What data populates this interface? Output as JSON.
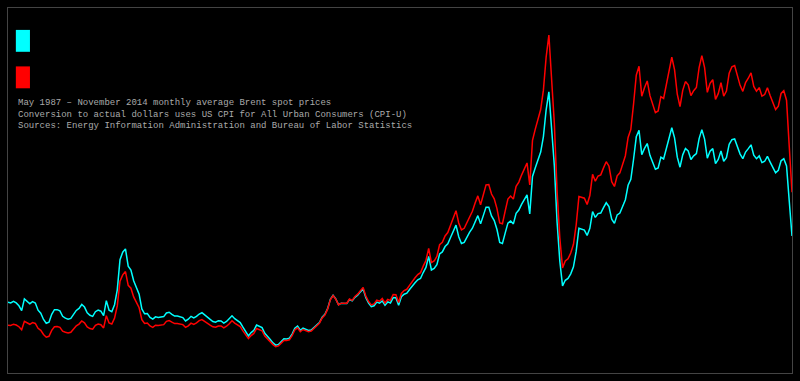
{
  "chart_data": {
    "type": "line",
    "annotations": [
      "May 1987 – November 2014 monthly average Brent spot prices",
      "Conversion to actual dollars uses US CPI for All Urban Consumers (CPI-U)",
      "Sources: Energy Information Administration and Bureau of Labor Statistics"
    ],
    "xlim": [
      0,
      287
    ],
    "ylim": [
      0,
      141.7176
    ],
    "tick_labels": false,
    "grid": false,
    "series": [
      {
        "color": "#ff0000",
        "values": [
          18.58,
          18.46,
          18.95,
          18.63,
          17.97,
          16.81,
          20.05,
          19.4,
          18.92,
          19.57,
          19.25,
          17.36,
          16.58,
          14.94,
          13.9,
          14.25,
          16.54,
          17.93,
          18.02,
          17.72,
          16.27,
          15.82,
          15.55,
          15.82,
          17.17,
          18.32,
          19.0,
          20.2,
          19.5,
          17.9,
          17.25,
          17.0,
          18.5,
          19.0,
          18.75,
          17.5,
          22.26,
          19.41,
          19.03,
          21.28,
          26.06,
          35.69,
          38.11,
          39.39,
          34.03,
          32.91,
          29.55,
          27.1,
          25.33,
          20.73,
          19.27,
          19.43,
          18.26,
          17.71,
          18.56,
          18.44,
          18.57,
          18.78,
          20.07,
          20.36,
          19.74,
          19.2,
          19.21,
          18.88,
          18.78,
          17.72,
          18.31,
          19.35,
          18.9,
          19.44,
          20.33,
          20.76,
          19.93,
          19.39,
          18.6,
          17.94,
          17.75,
          18.26,
          18.28,
          17.55,
          18.18,
          19.15,
          20.3,
          19.36,
          18.72,
          18.0,
          16.37,
          14.58,
          13.35,
          14.54,
          15.38,
          17.28,
          16.79,
          16.41,
          14.35,
          13.15,
          12.21,
          11.02,
          10.18,
          10.52,
          11.59,
          12.63,
          12.59,
          12.89,
          14.47,
          16.71,
          17.55,
          16.02,
          16.88,
          16.5,
          16.06,
          16.32,
          17.28,
          18.23,
          19.34,
          21.4,
          22.54,
          24.78,
          28.4,
          30.05,
          28.66,
          26.47,
          27.1,
          27.08,
          27.09,
          28.73,
          28.2,
          29.68,
          30.61,
          31.93,
          33.21,
          29.84,
          27.76,
          26.45,
          26.8,
          28.26,
          27.89,
          28.91,
          27.15,
          28.55,
          28.19,
          30.47,
          30.43,
          27.4,
          30.89,
          32.0,
          32.5,
          34.0,
          35.68,
          36.95,
          38.22,
          38.93,
          41.48,
          43.67,
          48.42,
          42.86,
          43.48,
          45.26,
          49.79,
          50.76,
          53.21,
          54.54,
          57.35,
          60.63,
          63.02,
          58.25,
          55.57,
          56.19,
          58.63,
          60.93,
          62.78,
          66.02,
          68.77,
          65.32,
          69.08,
          73.05,
          73.16,
          69.47,
          67.63,
          63.82,
          58.27,
          57.96,
          62.82,
          67.53,
          68.68,
          67.52,
          72.5,
          74.13,
          76.85,
          79.38,
          81.55,
          73.01,
          90.36,
          94.59,
          97.97,
          102.3,
          109.83,
          122.68,
          131.22,
          114.8,
          96.94,
          70.61,
          52.51,
          40.81,
          43.48,
          44.33,
          46.56,
          49.98,
          57.55,
          68.55,
          68.17,
          67.86,
          65.4,
          68.92,
          77.14,
          74.48,
          76.49,
          76.93,
          79.65,
          82.04,
          80.3,
          74.29,
          72.41,
          76.58,
          77.7,
          81.04,
          84.36,
          91.44,
          94.56,
          104.46,
          115.69,
          119.12,
          107.46,
          110.79,
          113.4,
          107.67,
          104.61,
          101.09,
          101.73,
          107.28,
          106.59,
          111.97,
          117.97,
          122.65,
          117.78,
          108.23,
          103.47,
          109.73,
          113.14,
          111.9,
          107.7,
          109.63,
          110.85,
          118.61,
          123.23,
          118.54,
          108.97,
          112.5,
          113.87,
          106.27,
          108.46,
          112.75,
          107.53,
          109.45,
          116.44,
          118.9,
          119.36,
          115.19,
          111.68,
          109.36,
          112.73,
          114.44,
          116.53,
          111.26,
          109.41,
          110.82,
          107.48,
          108.11,
          110.72,
          107.71,
          105.18,
          102.3,
          103.58,
          108.53,
          109.62,
          105.91,
          87.82,
          70.15
        ]
      },
      {
        "color": "#00ffff",
        "values": [
          27.5,
          27.2,
          27.8,
          27.2,
          26.1,
          24.2,
          28.8,
          27.7,
          26.9,
          27.7,
          27.2,
          24.4,
          23.2,
          20.8,
          19.3,
          19.7,
          22.8,
          24.6,
          24.6,
          24.1,
          22.0,
          21.3,
          20.9,
          21.2,
          22.9,
          24.3,
          25.1,
          26.6,
          25.6,
          23.4,
          22.4,
          22.0,
          23.8,
          24.4,
          24.0,
          22.3,
          28.1,
          24.4,
          23.8,
          26.5,
          32.3,
          44.0,
          46.9,
          48.2,
          41.5,
          40.0,
          35.8,
          32.8,
          30.6,
          24.9,
          23.0,
          23.1,
          21.6,
          20.9,
          21.8,
          21.6,
          21.7,
          21.9,
          23.3,
          23.6,
          22.8,
          22.1,
          22.1,
          21.7,
          21.5,
          20.2,
          20.9,
          22.0,
          21.4,
          22.0,
          22.9,
          23.4,
          22.4,
          21.7,
          20.8,
          20.0,
          19.7,
          20.3,
          20.2,
          19.4,
          20.0,
          21.0,
          22.2,
          21.1,
          20.4,
          19.6,
          17.8,
          15.8,
          14.4,
          15.7,
          16.6,
          18.6,
          18.0,
          17.6,
          15.4,
          14.0,
          13.0,
          11.7,
          10.8,
          11.1,
          12.2,
          13.3,
          13.2,
          13.5,
          15.1,
          17.4,
          18.2,
          16.6,
          17.4,
          17.0,
          16.5,
          16.7,
          17.6,
          18.5,
          19.6,
          21.7,
          22.8,
          25.0,
          28.6,
          30.2,
          28.8,
          26.5,
          27.1,
          27.0,
          27.0,
          28.5,
          28.0,
          29.4,
          30.2,
          31.5,
          32.6,
          29.2,
          27.1,
          25.8,
          26.1,
          27.5,
          27.1,
          28.0,
          26.3,
          27.6,
          27.2,
          29.3,
          29.2,
          26.3,
          29.6,
          30.6,
          31.0,
          32.4,
          33.9,
          35.0,
          36.2,
          36.7,
          39.0,
          41.0,
          45.3,
          40.0,
          40.6,
          42.1,
          46.2,
          47.0,
          49.1,
          50.2,
          52.6,
          55.4,
          57.4,
          52.9,
          50.3,
          50.7,
          52.8,
          54.7,
          56.2,
          58.9,
          61.1,
          57.9,
          61.1,
          64.4,
          64.4,
          61.0,
          59.2,
          55.7,
          50.7,
          50.3,
          54.3,
          58.2,
          59.0,
          57.9,
          62.0,
          63.3,
          65.5,
          67.5,
          69.2,
          61.8,
          76.3,
          79.6,
          82.3,
          85.8,
          91.8,
          102.2,
          109.2,
          95.4,
          80.5,
          58.6,
          43.5,
          33.8,
          36.0,
          36.7,
          38.5,
          41.2,
          47.3,
          56.2,
          55.8,
          55.5,
          53.4,
          56.2,
          62.7,
          60.4,
          61.9,
          62.1,
          64.2,
          66.1,
          64.6,
          59.7,
          58.1,
          61.4,
          62.1,
          64.7,
          67.3,
          72.9,
          75.2,
          83.0,
          91.7,
          94.2,
          84.8,
          87.2,
          89.1,
          84.5,
          82.0,
          79.1,
          79.6,
          83.8,
          83.1,
          87.2,
          91.7,
          95.2,
          91.3,
          83.8,
          79.9,
          84.7,
          87.2,
          86.2,
          82.9,
          84.3,
          85.2,
          91.0,
          94.5,
          90.8,
          83.4,
          86.1,
          87.1,
          81.3,
          82.9,
          86.2,
          82.2,
          83.6,
          88.8,
          90.6,
          90.9,
          87.7,
          85.0,
          83.2,
          85.8,
          87.1,
          88.6,
          84.6,
          83.2,
          84.3,
          81.7,
          82.2,
          84.1,
          81.9,
          79.9,
          77.7,
          78.7,
          82.4,
          83.2,
          80.4,
          66.7,
          53.2
        ]
      }
    ]
  }
}
